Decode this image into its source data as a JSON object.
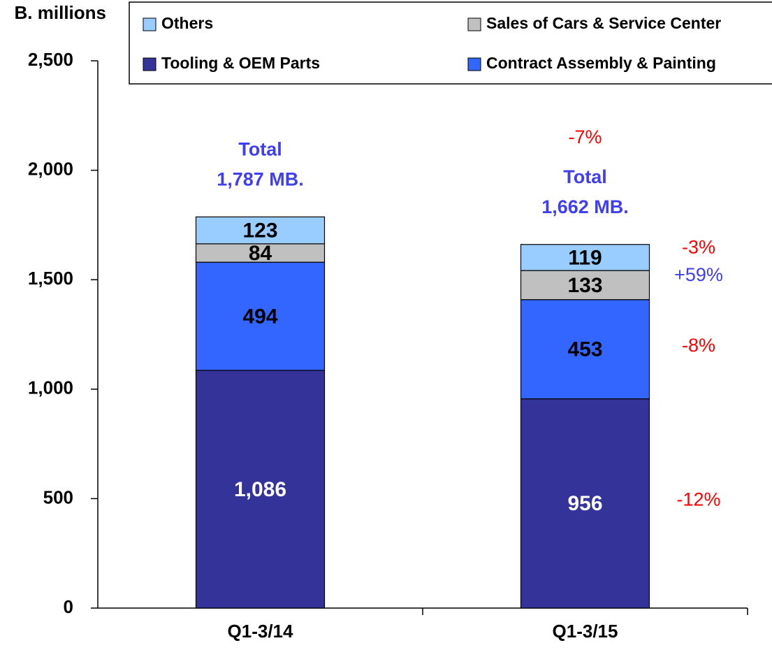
{
  "chart_data": {
    "type": "stacked_bar",
    "y_axis_label": "B. millions",
    "categories": [
      "Q1-3/14",
      "Q1-3/15"
    ],
    "series": [
      {
        "name": "Tooling & OEM Parts",
        "color": "#333399",
        "values": [
          1086,
          956
        ],
        "value_labels": [
          "1,086",
          "956"
        ],
        "change_label": "-12%",
        "change_color": "#ff0000"
      },
      {
        "name": "Contract Assembly & Painting",
        "color": "#3366ff",
        "values": [
          494,
          453
        ],
        "value_labels": [
          "494",
          "453"
        ],
        "change_label": "-8%",
        "change_color": "#ff0000"
      },
      {
        "name": "Sales of Cars & Service Center",
        "color": "#c0c0c0",
        "values": [
          84,
          133
        ],
        "value_labels": [
          "84",
          "133"
        ],
        "change_label": "+59%",
        "change_color": "#3f3ff0"
      },
      {
        "name": "Others",
        "color": "#99ccff",
        "values": [
          123,
          119
        ],
        "value_labels": [
          "123",
          "119"
        ],
        "change_label": "-3%",
        "change_color": "#ff0000"
      }
    ],
    "total_labels": [
      [
        "Total",
        "1,787 MB."
      ],
      [
        "Total",
        "1,662 MB."
      ]
    ],
    "total_change_label": "-7%",
    "ylim": [
      0,
      2500
    ],
    "yticks": [
      0,
      500,
      {
        "value": 1000,
        "label": "1,000"
      },
      {
        "value": 1500,
        "label": "1,500"
      },
      {
        "value": 2000,
        "label": "2,000"
      },
      {
        "value": 2500,
        "label": "2,500"
      }
    ]
  }
}
